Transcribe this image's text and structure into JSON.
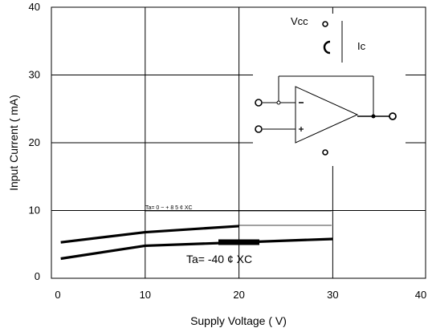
{
  "chart_data": {
    "type": "line",
    "xlabel": "Supply  Voltage  ( V)",
    "ylabel": "Input  Current  ( mA)",
    "xlim": [
      0,
      40
    ],
    "ylim": [
      0,
      40
    ],
    "xticks": [
      "0",
      "10",
      "20",
      "30",
      "40"
    ],
    "yticks": [
      "0",
      "10",
      "20",
      "30",
      "40"
    ],
    "grid": true,
    "series": [
      {
        "x": [
          1,
          10,
          20
        ],
        "y": [
          5.3,
          6.8,
          7.7
        ]
      },
      {
        "x": [
          1,
          10,
          20,
          30
        ],
        "y": [
          2.9,
          4.8,
          5.3,
          5.8
        ]
      }
    ],
    "annotations": {
      "ta_upper": "Ta=        0  ~  +  8  5  ¢  XC",
      "ta_lower": "Ta= -40 ¢ XC",
      "vcc": "Vcc",
      "ic": "Ic"
    }
  }
}
